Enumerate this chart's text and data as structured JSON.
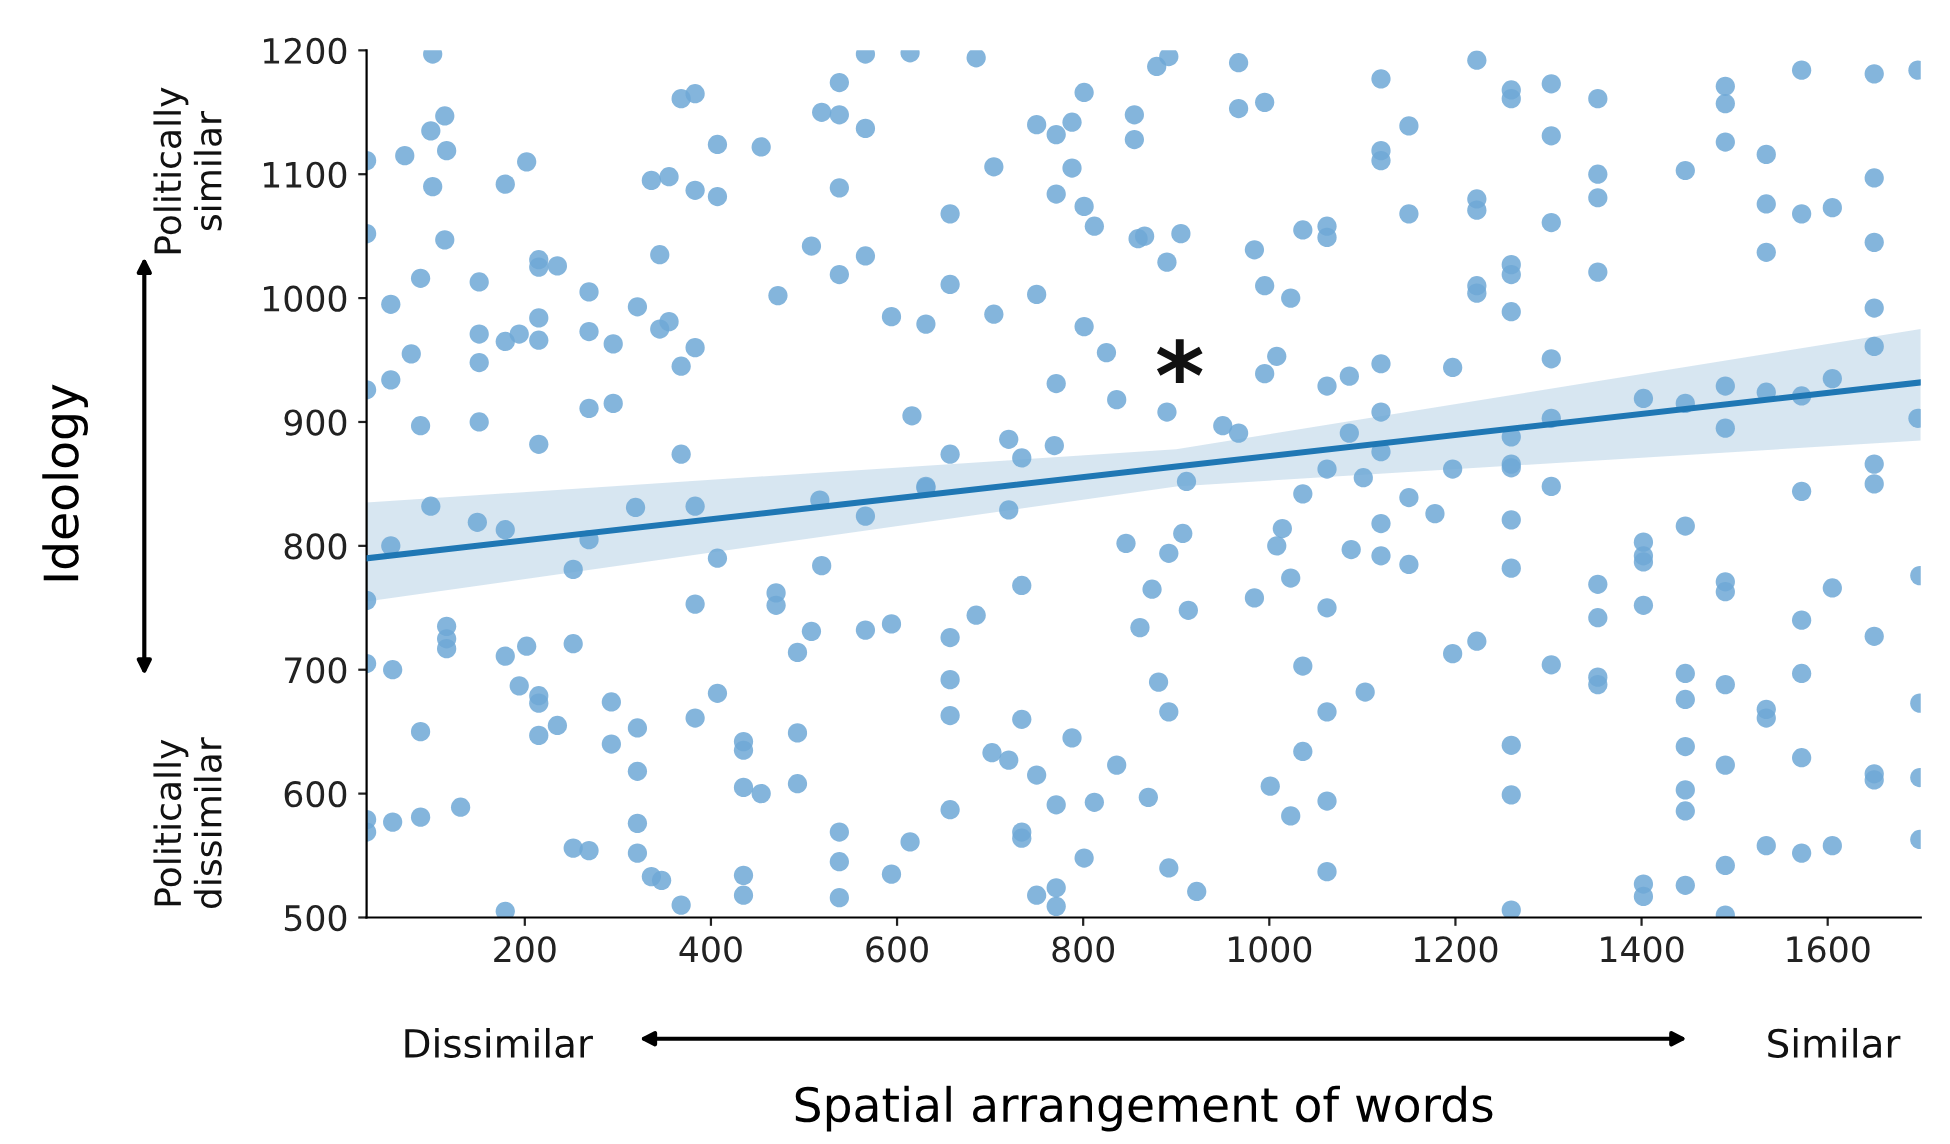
{
  "chart_data": {
    "type": "scatter",
    "xlabel": "Spatial arrangement of words",
    "ylabel": "Ideology",
    "xlim": [
      30,
      1700
    ],
    "ylim": [
      500,
      1200
    ],
    "xticks": [
      200,
      400,
      600,
      800,
      1000,
      1200,
      1400,
      1600
    ],
    "yticks": [
      500,
      600,
      700,
      800,
      900,
      1000,
      1100,
      1200
    ],
    "annotations": [
      "Politically\nsimilar",
      "Politically\ndissimilar",
      "Dissimilar",
      "Similar",
      "*"
    ],
    "series": [
      {
        "color": "#6fa8d6",
        "marker": "circle",
        "x": [
          101,
          99,
          114,
          116,
          71,
          101,
          179,
          202,
          114,
          88,
          151,
          215,
          215,
          235,
          56,
          78,
          56,
          88,
          151,
          151,
          179,
          194,
          215,
          215,
          215,
          151,
          269,
          269,
          295,
          269,
          295,
          321,
          345,
          345,
          355,
          368,
          383,
          368,
          383,
          336,
          355,
          383,
          407,
          407,
          454,
          368,
          472,
          508,
          519,
          538,
          538,
          566,
          538,
          538,
          566,
          566,
          614,
          685,
          594,
          631,
          657,
          657,
          704,
          704,
          616,
          720,
          734,
          657,
          750,
          750,
          771,
          788,
          801,
          788,
          771,
          801,
          812,
          801,
          825,
          771,
          836,
          769,
          855,
          855,
          859,
          30,
          30,
          30,
          631,
          879,
          892,
          967,
          967,
          995,
          1120,
          1150,
          1120,
          1120,
          1223,
          1260,
          1260,
          1303,
          1303,
          1353,
          1353,
          1353,
          1447,
          1490,
          1490,
          1490,
          1534,
          1572,
          1650,
          1697,
          1534,
          1572,
          1605,
          1534,
          1650,
          1650,
          1650,
          1650,
          1697,
          1650,
          1650,
          1572,
          866,
          905,
          890,
          984,
          1036,
          1062,
          1062,
          1150,
          1223,
          1223,
          1303,
          1260,
          1260,
          1223,
          1223,
          1260,
          1353,
          995,
          1023,
          995,
          1008,
          1062,
          1086,
          1120,
          1197,
          1303,
          890,
          950,
          967,
          1120,
          1086,
          1120,
          1062,
          1101,
          1197,
          1260,
          1260,
          1260,
          1303,
          1303,
          1402,
          1447,
          1490,
          1490,
          1534,
          1572,
          1605,
          911,
          1036,
          99,
          149,
          179,
          56,
          269,
          252,
          319,
          383,
          407,
          383,
          517,
          566,
          519,
          470,
          470,
          631,
          720,
          734,
          846,
          861,
          30,
          30,
          58,
          116,
          116,
          116,
          179,
          202,
          252,
          194,
          215,
          215,
          215,
          235,
          88,
          293,
          293,
          321,
          321,
          383,
          407,
          435,
          435,
          435,
          454,
          493,
          508,
          493,
          493,
          566,
          594,
          657,
          657,
          657,
          685,
          734,
          702,
          720,
          750,
          788,
          836,
          771,
          812,
          657,
          30,
          30,
          58,
          88,
          131,
          252,
          269,
          321,
          321,
          336,
          347,
          368,
          435,
          435,
          538,
          538,
          538,
          614,
          594,
          734,
          734,
          801,
          750,
          771,
          771,
          179,
          892,
          907,
          874,
          913,
          1014,
          1008,
          1023,
          984,
          1062,
          1088,
          1120,
          1120,
          1150,
          1178,
          1150,
          1260,
          1260,
          1353,
          1353,
          1402,
          1402,
          1402,
          1402,
          1447,
          1490,
          1490,
          1605,
          1572,
          1650,
          1699,
          1699,
          1699,
          1699,
          881,
          892,
          1036,
          1103,
          1062,
          1036,
          870,
          1001,
          1023,
          1062,
          892,
          922,
          1062,
          1197,
          1223,
          1303,
          1260,
          1260,
          1353,
          1353,
          1447,
          1447,
          1447,
          1447,
          1447,
          1490,
          1490,
          1534,
          1534,
          1572,
          1572,
          1650,
          1650,
          1490,
          1534,
          1572,
          1605,
          1402,
          1402,
          1447,
          1260,
          1490
        ],
        "values": [
          1197,
          1135,
          1147,
          1119,
          1115,
          1090,
          1092,
          1110,
          1047,
          1016,
          1013,
          1031,
          1025,
          1026,
          995,
          955,
          934,
          897,
          971,
          948,
          965,
          971,
          984,
          966,
          882,
          900,
          1005,
          973,
          963,
          911,
          915,
          993,
          1035,
          975,
          981,
          945,
          960,
          1161,
          1165,
          1095,
          1098,
          1087,
          1082,
          1124,
          1122,
          874,
          1002,
          1042,
          1150,
          1174,
          1148,
          1137,
          1089,
          1019,
          1034,
          1197,
          1198,
          1194,
          985,
          979,
          1068,
          1011,
          1106,
          987,
          905,
          886,
          871,
          874,
          1003,
          1140,
          1132,
          1142,
          1166,
          1105,
          1084,
          1074,
          1058,
          977,
          956,
          931,
          918,
          881,
          1148,
          1128,
          1048,
          1111,
          1052,
          926,
          848,
          1187,
          1195,
          1190,
          1153,
          1158,
          1177,
          1139,
          1119,
          1111,
          1192,
          1168,
          1161,
          1173,
          1131,
          1161,
          1100,
          1081,
          1103,
          1171,
          1157,
          1126,
          1116,
          1184,
          1181,
          1184,
          1076,
          1068,
          1073,
          1037,
          1097,
          1045,
          992,
          961,
          903,
          866,
          850,
          844,
          1050,
          1052,
          1029,
          1039,
          1055,
          1058,
          1049,
          1068,
          1080,
          1071,
          1061,
          1027,
          1019,
          1010,
          1004,
          989,
          1021,
          1010,
          1000,
          939,
          953,
          929,
          937,
          947,
          944,
          951,
          908,
          897,
          891,
          908,
          891,
          876,
          862,
          855,
          862,
          888,
          866,
          863,
          903,
          848,
          919,
          915,
          929,
          895,
          924,
          921,
          935,
          852,
          842,
          832,
          819,
          813,
          800,
          805,
          781,
          831,
          832,
          790,
          753,
          837,
          824,
          784,
          762,
          752,
          847,
          829,
          768,
          802,
          734,
          756,
          705,
          700,
          735,
          725,
          717,
          711,
          719,
          721,
          687,
          679,
          673,
          647,
          655,
          650,
          674,
          640,
          653,
          618,
          661,
          681,
          642,
          635,
          605,
          600,
          714,
          731,
          649,
          608,
          732,
          737,
          726,
          692,
          663,
          744,
          660,
          633,
          627,
          615,
          645,
          623,
          591,
          593,
          587,
          579,
          569,
          577,
          581,
          589,
          556,
          554,
          576,
          552,
          533,
          530,
          510,
          534,
          518,
          569,
          545,
          516,
          561,
          535,
          569,
          564,
          548,
          518,
          524,
          509,
          505,
          794,
          810,
          765,
          748,
          814,
          800,
          774,
          758,
          750,
          797,
          818,
          792,
          839,
          826,
          785,
          821,
          782,
          769,
          742,
          803,
          792,
          787,
          752,
          816,
          771,
          763,
          766,
          740,
          727,
          776,
          673,
          613,
          563,
          690,
          666,
          703,
          682,
          666,
          634,
          597,
          606,
          582,
          594,
          540,
          521,
          537,
          713,
          723,
          704,
          639,
          599,
          694,
          688,
          697,
          676,
          638,
          603,
          586,
          688,
          623,
          668,
          661,
          697,
          629,
          616,
          611,
          542,
          558,
          552,
          558,
          527,
          517,
          526,
          506,
          502
        ]
      },
      {
        "type": "line",
        "color": "#1f77b4",
        "x": [
          30,
          900,
          1700
        ],
        "values": [
          790,
          864,
          932
        ],
        "lower": [
          755,
          848,
          885
        ],
        "upper": [
          835,
          878,
          975
        ]
      }
    ]
  }
}
